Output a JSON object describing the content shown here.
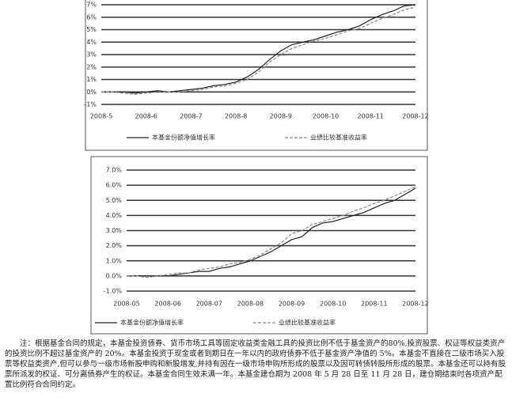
{
  "chart_data": [
    {
      "type": "line",
      "categories": [
        "2008-5",
        null,
        null,
        null,
        "2008-6",
        null,
        null,
        null,
        "2008-7",
        null,
        null,
        null,
        "2008-8",
        null,
        null,
        null,
        "2008-9",
        null,
        null,
        null,
        "2008-10",
        null,
        null,
        null,
        "2008-11",
        null,
        null,
        null,
        "2008-12"
      ],
      "series": [
        {
          "name": "本基金份额净值增长率",
          "color": "#222222",
          "values": [
            0,
            0,
            0,
            -0.1,
            0,
            0.1,
            0,
            0.1,
            0.2,
            0.3,
            0.5,
            0.6,
            0.8,
            1.2,
            1.8,
            2.6,
            3.3,
            3.8,
            4.0,
            4.2,
            4.5,
            4.8,
            5.0,
            5.3,
            5.8,
            6.2,
            6.5,
            6.9,
            7.0
          ]
        },
        {
          "name": "业绩比较基准收益率",
          "color": "#888888",
          "values": [
            0,
            0,
            -0.1,
            -0.2,
            -0.1,
            0,
            0,
            0,
            0.1,
            0.2,
            0.4,
            0.5,
            0.7,
            1.0,
            1.6,
            2.4,
            3.0,
            3.5,
            3.8,
            4.1,
            4.3,
            4.6,
            4.9,
            5.1,
            5.5,
            5.9,
            6.2,
            6.6,
            6.8
          ]
        }
      ],
      "ylim": [
        -1,
        7
      ],
      "yticks": [
        {
          "value": -1,
          "label": "-1%"
        },
        {
          "value": 0,
          "label": "0%"
        },
        {
          "value": 1,
          "label": "1%"
        },
        {
          "value": 2,
          "label": "2%"
        },
        {
          "value": 3,
          "label": "3%"
        },
        {
          "value": 4,
          "label": "4%"
        },
        {
          "value": 5,
          "label": "5%"
        },
        {
          "value": 6,
          "label": "6%"
        },
        {
          "value": 7,
          "label": "7%"
        }
      ],
      "grid": true
    },
    {
      "type": "line",
      "categories": [
        "2008-05",
        null,
        null,
        null,
        "2008-06",
        null,
        null,
        null,
        "2008-07",
        null,
        null,
        null,
        "2008-08",
        null,
        null,
        null,
        "2008-09",
        null,
        null,
        null,
        "2008-10",
        null,
        null,
        null,
        "2008-11",
        null,
        null,
        null,
        "2008-12"
      ],
      "series": [
        {
          "name": "本基金份额净值增长率",
          "color": "#222222",
          "values": [
            0,
            0,
            0,
            0,
            0,
            0.1,
            0.2,
            0.3,
            0.3,
            0.5,
            0.6,
            0.8,
            1.0,
            1.3,
            1.6,
            2.0,
            2.4,
            2.6,
            3.2,
            3.5,
            3.6,
            3.8,
            4.0,
            4.2,
            4.5,
            4.8,
            5.0,
            5.4,
            5.8
          ]
        },
        {
          "name": "业绩比较基准收益率",
          "color": "#888888",
          "values": [
            0,
            0,
            -0.1,
            0,
            0.1,
            0.2,
            0.2,
            0.4,
            0.5,
            0.6,
            0.8,
            0.9,
            1.1,
            1.4,
            1.8,
            2.2,
            2.8,
            3.0,
            3.4,
            3.6,
            3.8,
            4.0,
            4.3,
            4.5,
            4.8,
            5.0,
            5.3,
            5.6,
            5.9
          ]
        }
      ],
      "ylim": [
        -1,
        7
      ],
      "yticks": [
        {
          "value": -1,
          "label": "-1.0%"
        },
        {
          "value": 0,
          "label": "0.0%"
        },
        {
          "value": 1,
          "label": "1.0%"
        },
        {
          "value": 2,
          "label": "2.0%"
        },
        {
          "value": 3,
          "label": "3.0%"
        },
        {
          "value": 4,
          "label": "4.0%"
        },
        {
          "value": 5,
          "label": "5.0%"
        },
        {
          "value": 6,
          "label": "6.0%"
        },
        {
          "value": 7,
          "label": "7.0%"
        }
      ],
      "grid": true
    }
  ],
  "note": "注：根据基金合同的规定，本基金投资债券、货币市场工具等固定收益类金融工具的投资比例不低于基金资产的80%,投资股票、权证等权益类资产的投资比例不超过基金资产的 20%。本基金投资于现金或者到期日在一年以内的政府债券不低于基金资产净值的 5%。本基金不直接在二级市场买入股票等权益类资产,但可以参与一级市场新股申购和新股增发,并持有因在一级市场申购所形成的股票以及因可转债转股所形成的股票。本基金还可以持有股票所派发的权证、可分离债券产生的权证。本基金合同生效未满一年。本基金建仓期为 2008 年 5 月 28 日至 11 月 28 日，建仓期结束时各项资产配置比例符合合同约定。"
}
